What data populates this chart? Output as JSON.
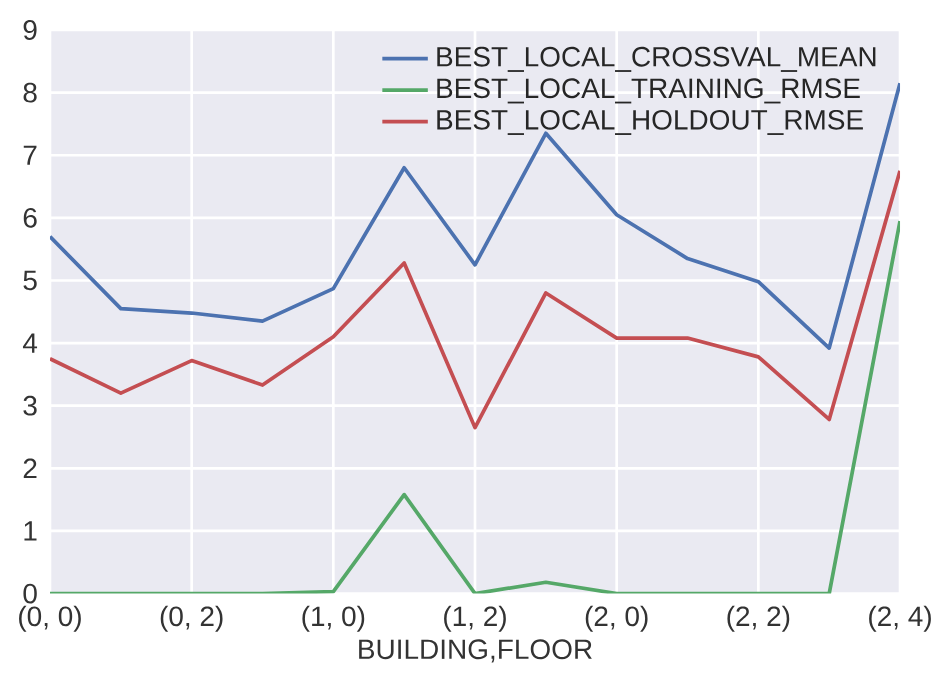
{
  "chart_data": {
    "type": "line",
    "xlabel": "BUILDING,FLOOR",
    "categories": [
      "(0, 0)",
      null,
      "(0, 2)",
      null,
      "(1, 0)",
      null,
      "(1, 2)",
      null,
      "(2, 0)",
      null,
      "(2, 2)",
      null,
      "(2, 4)"
    ],
    "series": [
      {
        "name": "BEST_LOCAL_CROSSVAL_MEAN",
        "color": "#4c72b0",
        "values": [
          5.7,
          4.55,
          4.48,
          4.35,
          4.87,
          6.8,
          5.25,
          7.35,
          6.05,
          5.35,
          4.98,
          3.92,
          8.15
        ]
      },
      {
        "name": "BEST_LOCAL_TRAINING_RMSE",
        "color": "#55a868",
        "values": [
          0,
          0,
          0,
          0,
          0.03,
          1.58,
          0,
          0.18,
          0,
          0,
          0,
          0,
          5.95
        ]
      },
      {
        "name": "BEST_LOCAL_HOLDOUT_RMSE",
        "color": "#c44e52",
        "values": [
          3.75,
          3.2,
          3.72,
          3.33,
          4.1,
          5.28,
          2.65,
          4.8,
          4.08,
          4.08,
          3.78,
          2.78,
          6.75
        ]
      }
    ],
    "ylim": [
      0,
      9
    ],
    "yticks": [
      0,
      1,
      2,
      3,
      4,
      5,
      6,
      7,
      8,
      9
    ],
    "grid": true,
    "legend": "top right"
  }
}
